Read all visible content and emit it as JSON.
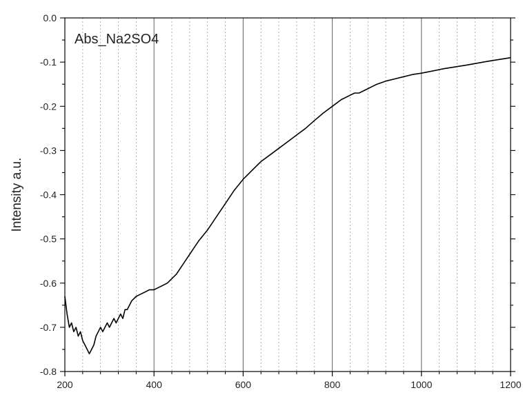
{
  "chart_data": {
    "type": "line",
    "title": "Abs_Na2SO4",
    "xlabel": "",
    "ylabel": "Intensity a.u.",
    "xlim": [
      200,
      1200
    ],
    "ylim": [
      -0.8,
      0.0
    ],
    "x_ticks": [
      200,
      400,
      600,
      800,
      1000,
      1200
    ],
    "x_tick_labels": [
      "200",
      "400",
      "600",
      "800",
      "1000",
      "1200"
    ],
    "y_ticks": [
      0.0,
      -0.1,
      -0.2,
      -0.3,
      -0.4,
      -0.5,
      -0.6,
      -0.7,
      -0.8
    ],
    "y_tick_labels": [
      "0.0",
      "-0.1",
      "-0.2",
      "-0.3",
      "-0.4",
      "-0.5",
      "-0.6",
      "-0.7",
      "-0.8"
    ],
    "grid": "vertical",
    "legend": "none",
    "line_color": "#000000",
    "series": [
      {
        "x": [
          200,
          205,
          210,
          215,
          220,
          225,
          230,
          235,
          240,
          245,
          250,
          255,
          260,
          265,
          270,
          275,
          280,
          285,
          290,
          295,
          300,
          305,
          310,
          315,
          320,
          325,
          330,
          335,
          340,
          345,
          350,
          360,
          370,
          380,
          390,
          400,
          410,
          420,
          430,
          440,
          450,
          460,
          470,
          480,
          490,
          500,
          520,
          540,
          560,
          580,
          600,
          620,
          640,
          660,
          680,
          700,
          720,
          740,
          760,
          780,
          800,
          820,
          840,
          850,
          860,
          880,
          900,
          920,
          940,
          960,
          980,
          1000,
          1050,
          1100,
          1150,
          1200
        ],
        "y": [
          -0.63,
          -0.67,
          -0.7,
          -0.69,
          -0.71,
          -0.7,
          -0.72,
          -0.71,
          -0.73,
          -0.74,
          -0.75,
          -0.76,
          -0.75,
          -0.74,
          -0.72,
          -0.71,
          -0.7,
          -0.71,
          -0.7,
          -0.69,
          -0.7,
          -0.69,
          -0.68,
          -0.69,
          -0.68,
          -0.67,
          -0.68,
          -0.66,
          -0.66,
          -0.65,
          -0.64,
          -0.63,
          -0.625,
          -0.62,
          -0.615,
          -0.615,
          -0.61,
          -0.605,
          -0.6,
          -0.59,
          -0.58,
          -0.565,
          -0.55,
          -0.535,
          -0.52,
          -0.505,
          -0.48,
          -0.45,
          -0.42,
          -0.39,
          -0.365,
          -0.345,
          -0.325,
          -0.31,
          -0.295,
          -0.28,
          -0.265,
          -0.25,
          -0.232,
          -0.215,
          -0.2,
          -0.185,
          -0.175,
          -0.17,
          -0.17,
          -0.16,
          -0.15,
          -0.143,
          -0.138,
          -0.133,
          -0.128,
          -0.125,
          -0.115,
          -0.107,
          -0.098,
          -0.09
        ]
      }
    ]
  }
}
